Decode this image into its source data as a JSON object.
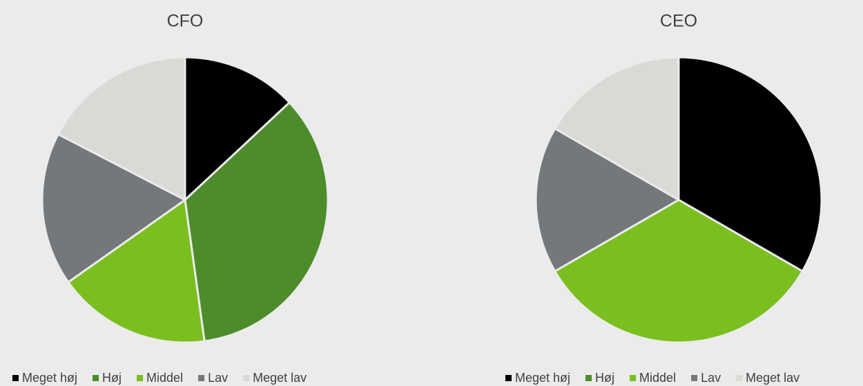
{
  "chart_data": [
    {
      "type": "pie",
      "title": "CFO",
      "categories": [
        "Meget høj",
        "Høj",
        "Middel",
        "Lav",
        "Meget lav"
      ],
      "values": [
        3,
        8,
        4,
        4,
        4
      ],
      "colors": [
        "#000000",
        "#4d8c2a",
        "#7abf1f",
        "#75787b",
        "#d9d9d6"
      ],
      "legend": "bottom"
    },
    {
      "type": "pie",
      "title": "CEO",
      "categories": [
        "Meget høj",
        "Høj",
        "Middel",
        "Lav",
        "Meget lav"
      ],
      "values": [
        2,
        0,
        2,
        1,
        1
      ],
      "colors": [
        "#000000",
        "#4d8c2a",
        "#7abf1f",
        "#75787b",
        "#d9d9d6"
      ],
      "legend": "bottom"
    }
  ]
}
